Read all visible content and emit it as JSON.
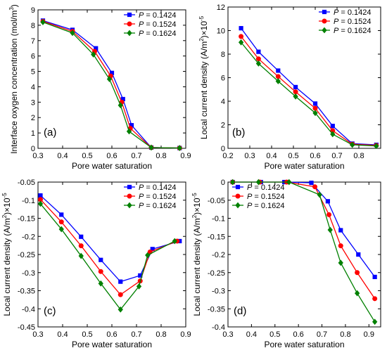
{
  "chart_data": [
    {
      "type": "line",
      "panel_label": "(a)",
      "xlabel": "Pore water saturation",
      "ylabel": "Interface oxygen concentration (mol/m",
      "ylabel_sup": "3",
      "ylabel_end": ")",
      "xlim": [
        0.3,
        0.9
      ],
      "ylim": [
        0,
        9
      ],
      "xticks": [
        0.3,
        0.4,
        0.5,
        0.6,
        0.7,
        0.8,
        0.9
      ],
      "xtick_labels": [
        "0.3",
        "0.4",
        "0.5",
        "0.6",
        "0.7",
        "0.8",
        "0.9"
      ],
      "yticks": [
        0,
        1,
        2,
        3,
        4,
        5,
        6,
        7,
        8,
        9
      ],
      "ytick_labels": [
        "0",
        "1",
        "2",
        "3",
        "4",
        "5",
        "6",
        "7",
        "8",
        "9"
      ],
      "legend_position": "top-right",
      "series": [
        {
          "name": "P = 0.1424",
          "color": "#0000ff",
          "marker": "square",
          "x": [
            0.32,
            0.44,
            0.535,
            0.6,
            0.645,
            0.68,
            0.76,
            0.875
          ],
          "y": [
            8.3,
            7.7,
            6.5,
            4.9,
            3.2,
            1.5,
            0.05,
            0.02
          ]
        },
        {
          "name": "P = 0.1524",
          "color": "#ff0000",
          "marker": "circle",
          "x": [
            0.32,
            0.44,
            0.53,
            0.595,
            0.64,
            0.675,
            0.76,
            0.875
          ],
          "y": [
            8.25,
            7.6,
            6.3,
            4.7,
            3.0,
            1.3,
            0.05,
            0.02
          ]
        },
        {
          "name": "P = 0.1624",
          "color": "#008000",
          "marker": "diamond",
          "x": [
            0.32,
            0.44,
            0.525,
            0.59,
            0.635,
            0.67,
            0.76,
            0.875
          ],
          "y": [
            8.2,
            7.5,
            6.1,
            4.5,
            2.8,
            1.1,
            0.05,
            0.02
          ]
        }
      ]
    },
    {
      "type": "line",
      "panel_label": "(b)",
      "xlabel": "Pore water saturation",
      "ylabel": "Local current density (A/m",
      "ylabel_sup": "2",
      "ylabel_end": ")×10",
      "ylabel_sup2": "-5",
      "xlim": [
        0.2,
        0.9
      ],
      "ylim": [
        0,
        12
      ],
      "xticks": [
        0.2,
        0.3,
        0.4,
        0.5,
        0.6,
        0.7,
        0.8
      ],
      "xtick_labels": [
        "0.2",
        "0.3",
        "0.4",
        "0.5",
        "0.6",
        "0.7",
        "0.8"
      ],
      "yticks": [
        0,
        2,
        4,
        6,
        8,
        10,
        12
      ],
      "ytick_labels": [
        "0",
        "2",
        "4",
        "6",
        "8",
        "10",
        "12"
      ],
      "legend_position": "top-right",
      "series": [
        {
          "name": "P = 0.1424",
          "color": "#0000ff",
          "marker": "square",
          "x": [
            0.26,
            0.34,
            0.43,
            0.51,
            0.6,
            0.68,
            0.77,
            0.88
          ],
          "y": [
            10.2,
            8.2,
            6.6,
            5.2,
            3.8,
            1.9,
            0.4,
            0.3
          ]
        },
        {
          "name": "P = 0.1524",
          "color": "#ff0000",
          "marker": "circle",
          "x": [
            0.26,
            0.34,
            0.43,
            0.51,
            0.6,
            0.68,
            0.77,
            0.88
          ],
          "y": [
            9.5,
            7.6,
            6.1,
            4.8,
            3.4,
            1.5,
            0.35,
            0.25
          ]
        },
        {
          "name": "P = 0.1624",
          "color": "#008000",
          "marker": "diamond",
          "x": [
            0.26,
            0.34,
            0.43,
            0.51,
            0.6,
            0.68,
            0.77,
            0.88
          ],
          "y": [
            9.0,
            7.2,
            5.7,
            4.4,
            3.0,
            1.2,
            0.3,
            0.2
          ]
        }
      ]
    },
    {
      "type": "line",
      "panel_label": "(c)",
      "xlabel": "Pore water saturation",
      "ylabel": "Local current density (A/m",
      "ylabel_sup": "2",
      "ylabel_end": ")×10",
      "ylabel_sup2": "-5",
      "xlim": [
        0.3,
        0.9
      ],
      "ylim": [
        -0.45,
        -0.05
      ],
      "xticks": [
        0.3,
        0.4,
        0.5,
        0.6,
        0.7,
        0.8,
        0.9
      ],
      "xtick_labels": [
        "0.3",
        "0.4",
        "0.5",
        "0.6",
        "0.7",
        "0.8",
        "0.9"
      ],
      "yticks": [
        -0.45,
        -0.4,
        -0.35,
        -0.3,
        -0.25,
        -0.2,
        -0.15,
        -0.1,
        -0.05
      ],
      "ytick_labels": [
        "-0.45",
        "-0.4",
        "-0.35",
        "-0.3",
        "-0.25",
        "-0.2",
        "-0.15",
        "-0.1",
        "-0.05"
      ],
      "legend_position": "top-right",
      "series": [
        {
          "name": "P = 0.1424",
          "color": "#0000ff",
          "marker": "square",
          "x": [
            0.31,
            0.395,
            0.475,
            0.555,
            0.635,
            0.715,
            0.765,
            0.875
          ],
          "y": [
            -0.087,
            -0.14,
            -0.201,
            -0.265,
            -0.325,
            -0.308,
            -0.235,
            -0.213
          ]
        },
        {
          "name": "P = 0.1524",
          "color": "#ff0000",
          "marker": "circle",
          "x": [
            0.31,
            0.395,
            0.475,
            0.555,
            0.635,
            0.715,
            0.755,
            0.865
          ],
          "y": [
            -0.098,
            -0.16,
            -0.226,
            -0.297,
            -0.361,
            -0.323,
            -0.243,
            -0.213
          ]
        },
        {
          "name": "P = 0.1624",
          "color": "#008000",
          "marker": "diamond",
          "x": [
            0.31,
            0.395,
            0.475,
            0.555,
            0.635,
            0.71,
            0.745,
            0.855
          ],
          "y": [
            -0.11,
            -0.18,
            -0.254,
            -0.33,
            -0.402,
            -0.338,
            -0.252,
            -0.213
          ]
        }
      ]
    },
    {
      "type": "line",
      "panel_label": "(d)",
      "xlabel": "Pore water saturation",
      "ylabel": "Local current density (A/m",
      "ylabel_sup": "2",
      "ylabel_end": ")×10",
      "ylabel_sup2": "-5",
      "xlim": [
        0.3,
        0.95
      ],
      "ylim": [
        -0.4,
        0
      ],
      "xticks": [
        0.3,
        0.4,
        0.5,
        0.6,
        0.7,
        0.8,
        0.9
      ],
      "xtick_labels": [
        "0.3",
        "0.4",
        "0.5",
        "0.6",
        "0.7",
        "0.8",
        "0.9"
      ],
      "yticks": [
        -0.4,
        -0.35,
        -0.3,
        -0.25,
        -0.2,
        -0.15,
        -0.1,
        -0.05,
        0
      ],
      "ytick_labels": [
        "-0.4",
        "-0.35",
        "-0.3",
        "-0.25",
        "-0.2",
        "-0.15",
        "-0.1",
        "-0.05",
        "0"
      ],
      "legend_position": "top-left",
      "series": [
        {
          "name": "P = 0.1424",
          "color": "#0000ff",
          "marker": "square",
          "x": [
            0.32,
            0.44,
            0.54,
            0.655,
            0.725,
            0.78,
            0.855,
            0.925
          ],
          "y": [
            0,
            0,
            0,
            -0.002,
            -0.053,
            -0.133,
            -0.2,
            -0.262
          ]
        },
        {
          "name": "P = 0.1524",
          "color": "#ff0000",
          "marker": "circle",
          "x": [
            0.32,
            0.435,
            0.55,
            0.67,
            0.73,
            0.78,
            0.85,
            0.925
          ],
          "y": [
            0,
            0,
            0,
            -0.013,
            -0.09,
            -0.176,
            -0.25,
            -0.322
          ]
        },
        {
          "name": "P = 0.1624",
          "color": "#008000",
          "marker": "diamond",
          "x": [
            0.32,
            0.43,
            0.56,
            0.69,
            0.735,
            0.78,
            0.85,
            0.925
          ],
          "y": [
            0,
            0,
            0,
            -0.035,
            -0.132,
            -0.223,
            -0.307,
            -0.386
          ]
        }
      ]
    }
  ]
}
